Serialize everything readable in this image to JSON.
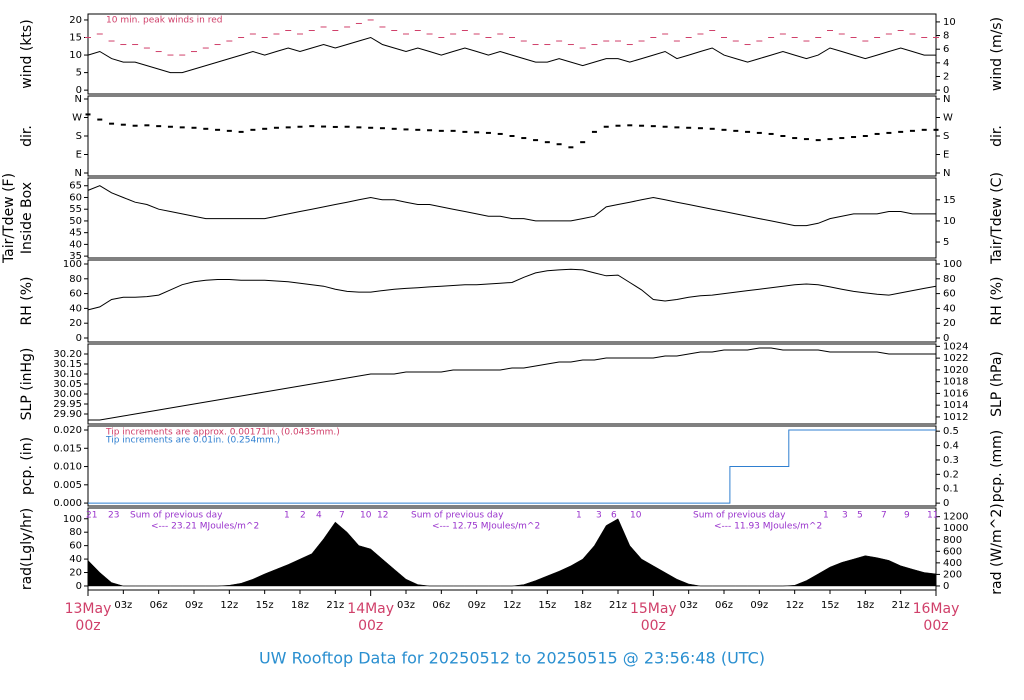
{
  "title": "UW Rooftop Data for 20250512  to  20250515 @ 23:56:48  (UTC)",
  "x": [
    0,
    1,
    2,
    3,
    4,
    5,
    6,
    7,
    8,
    9,
    10,
    11,
    12,
    13,
    14,
    15,
    16,
    17,
    18,
    19,
    20,
    21,
    22,
    23,
    24,
    25,
    26,
    27,
    28,
    29,
    30,
    31,
    32,
    33,
    34,
    35,
    36,
    37,
    38,
    39,
    40,
    41,
    42,
    43,
    44,
    45,
    46,
    47,
    48,
    49,
    50,
    51,
    52,
    53,
    54,
    55,
    56,
    57,
    58,
    59,
    60,
    61,
    62,
    63,
    64,
    65,
    66,
    67,
    68,
    69,
    70,
    71,
    72
  ],
  "xlim": [
    0,
    72
  ],
  "xticks": [
    {
      "value": 3,
      "label": "03z"
    },
    {
      "value": 6,
      "label": "06z"
    },
    {
      "value": 9,
      "label": "09z"
    },
    {
      "value": 12,
      "label": "12z"
    },
    {
      "value": 15,
      "label": "15z"
    },
    {
      "value": 18,
      "label": "18z"
    },
    {
      "value": 21,
      "label": "21z"
    },
    {
      "value": 27,
      "label": "03z"
    },
    {
      "value": 30,
      "label": "06z"
    },
    {
      "value": 33,
      "label": "09z"
    },
    {
      "value": 36,
      "label": "12z"
    },
    {
      "value": 39,
      "label": "15z"
    },
    {
      "value": 42,
      "label": "18z"
    },
    {
      "value": 45,
      "label": "21z"
    },
    {
      "value": 51,
      "label": "03z"
    },
    {
      "value": 54,
      "label": "06z"
    },
    {
      "value": 57,
      "label": "09z"
    },
    {
      "value": 60,
      "label": "12z"
    },
    {
      "value": 63,
      "label": "15z"
    },
    {
      "value": 66,
      "label": "18z"
    },
    {
      "value": 69,
      "label": "21z"
    }
  ],
  "day_ticks": [
    {
      "value": 0,
      "label": "13May",
      "sublabel": "00z"
    },
    {
      "value": 24,
      "label": "14May",
      "sublabel": "00z"
    },
    {
      "value": 48,
      "label": "15May",
      "sublabel": "00z"
    },
    {
      "value": 72,
      "label": "16May",
      "sublabel": "00z"
    }
  ],
  "chart_data": [
    {
      "type": "line",
      "ylabel": [
        "wind (kts)"
      ],
      "y2label": "wind (m/s)",
      "ylim": [
        -1.1,
        21.7
      ],
      "yticks": [
        0,
        5,
        10,
        15,
        20
      ],
      "y2lim": [
        -0.57,
        11.16
      ],
      "y2ticks": [
        0,
        2,
        4,
        6,
        8,
        10
      ],
      "annotations": [
        {
          "text": "10 min. peak winds in red",
          "color": "#d0406a"
        }
      ],
      "series": [
        {
          "mark": "line",
          "color": "#000000",
          "values": [
            10,
            11,
            9,
            8,
            8,
            7,
            6,
            5,
            5,
            6,
            7,
            8,
            9,
            10,
            11,
            10,
            11,
            12,
            11,
            12,
            13,
            12,
            13,
            14,
            15,
            13,
            12,
            11,
            12,
            11,
            10,
            11,
            12,
            11,
            10,
            11,
            10,
            9,
            8,
            8,
            9,
            8,
            7,
            8,
            9,
            9,
            8,
            9,
            10,
            11,
            9,
            10,
            11,
            12,
            10,
            9,
            8,
            9,
            10,
            11,
            10,
            9,
            10,
            12,
            11,
            10,
            9,
            10,
            11,
            12,
            11,
            10,
            10
          ]
        },
        {
          "mark": "dash",
          "color": "#d0406a",
          "values": [
            15,
            16,
            14,
            13,
            13,
            12,
            11,
            10,
            10,
            11,
            12,
            13,
            14,
            15,
            16,
            15,
            16,
            17,
            16,
            17,
            18,
            17,
            18,
            19,
            20,
            18,
            17,
            16,
            17,
            16,
            15,
            16,
            17,
            16,
            15,
            16,
            15,
            14,
            13,
            13,
            14,
            13,
            12,
            13,
            14,
            14,
            13,
            14,
            15,
            16,
            14,
            15,
            16,
            17,
            15,
            14,
            13,
            14,
            15,
            16,
            15,
            14,
            15,
            17,
            16,
            15,
            14,
            15,
            16,
            17,
            16,
            15,
            15
          ]
        }
      ]
    },
    {
      "type": "line",
      "ylabel": [
        "dir."
      ],
      "y2label": "dir.",
      "ylim": [
        -14.6,
        374.6
      ],
      "yticks": [
        {
          "value": 0,
          "label": "N"
        },
        {
          "value": 90,
          "label": "E"
        },
        {
          "value": 180,
          "label": "S"
        },
        {
          "value": 270,
          "label": "W"
        },
        {
          "value": 360,
          "label": "N"
        }
      ],
      "series": [
        {
          "mark": "points",
          "color": "#000000",
          "values": [
            285,
            260,
            240,
            235,
            230,
            232,
            228,
            225,
            222,
            220,
            215,
            210,
            205,
            200,
            210,
            215,
            220,
            222,
            225,
            228,
            226,
            224,
            225,
            222,
            220,
            218,
            215,
            212,
            210,
            208,
            205,
            205,
            200,
            198,
            195,
            190,
            180,
            170,
            160,
            150,
            140,
            125,
            150,
            200,
            225,
            230,
            232,
            230,
            228,
            225,
            222,
            220,
            218,
            215,
            210,
            205,
            200,
            195,
            190,
            180,
            170,
            165,
            160,
            165,
            170,
            175,
            180,
            190,
            195,
            200,
            205,
            210,
            210
          ]
        }
      ]
    },
    {
      "type": "line",
      "ylabel": [
        "Tair/Tdew (F)",
        "Inside Box"
      ],
      "y2label": "Tair/Tdew (C)",
      "ylim": [
        34.2,
        68.3
      ],
      "yticks": [
        35,
        40,
        45,
        50,
        55,
        60,
        65
      ],
      "y2lim": [
        1.22,
        20.17
      ],
      "y2ticks": [
        5,
        10,
        15
      ],
      "series": [
        {
          "mark": "line",
          "color": "#000000",
          "values": [
            63,
            65,
            62,
            60,
            58,
            57,
            55,
            54,
            53,
            52,
            51,
            51,
            51,
            51,
            51,
            51,
            52,
            53,
            54,
            55,
            56,
            57,
            58,
            59,
            60,
            59,
            59,
            58,
            57,
            57,
            56,
            55,
            54,
            53,
            52,
            52,
            51,
            51,
            50,
            50,
            50,
            50,
            51,
            52,
            56,
            57,
            58,
            59,
            60,
            59,
            58,
            57,
            56,
            55,
            54,
            53,
            52,
            51,
            50,
            49,
            48,
            48,
            49,
            51,
            52,
            53,
            53,
            53,
            54,
            54,
            53,
            53,
            53
          ]
        }
      ]
    },
    {
      "type": "line",
      "ylabel": [
        "RH (%)"
      ],
      "y2label": "RH (%)",
      "ylim": [
        -5.4,
        105.4
      ],
      "yticks": [
        0,
        20,
        40,
        60,
        80,
        100
      ],
      "y2lim": [
        -5.4,
        105.4
      ],
      "y2ticks": [
        0,
        20,
        40,
        60,
        80,
        100
      ],
      "series": [
        {
          "mark": "line",
          "color": "#000000",
          "values": [
            38,
            42,
            52,
            55,
            55,
            56,
            58,
            65,
            72,
            76,
            78,
            79,
            79,
            78,
            78,
            78,
            77,
            76,
            74,
            72,
            70,
            66,
            63,
            62,
            62,
            64,
            66,
            67,
            68,
            69,
            70,
            71,
            72,
            72,
            73,
            74,
            75,
            82,
            88,
            91,
            92,
            93,
            92,
            88,
            84,
            85,
            75,
            65,
            52,
            50,
            52,
            55,
            57,
            58,
            60,
            62,
            64,
            66,
            68,
            70,
            72,
            73,
            72,
            69,
            66,
            63,
            61,
            59,
            58,
            61,
            64,
            67,
            70
          ]
        }
      ]
    },
    {
      "type": "line",
      "ylabel": [
        "SLP (inHg)"
      ],
      "y2label": "SLP (hPa)",
      "ylim": [
        29.85,
        30.25
      ],
      "yticks": [
        {
          "value": 29.9,
          "label": "29.90"
        },
        {
          "value": 29.95,
          "label": "29.95"
        },
        {
          "value": 30,
          "label": "30.00"
        },
        {
          "value": 30.05,
          "label": "30.05"
        },
        {
          "value": 30.1,
          "label": "30.10"
        },
        {
          "value": 30.15,
          "label": "30.15"
        },
        {
          "value": 30.2,
          "label": "30.20"
        }
      ],
      "y2lim": [
        1010.8,
        1024.4
      ],
      "y2ticks": [
        1012,
        1014,
        1016,
        1018,
        1020,
        1022,
        1024
      ],
      "series": [
        {
          "mark": "line",
          "color": "#000000",
          "values": [
            29.87,
            29.87,
            29.88,
            29.89,
            29.9,
            29.91,
            29.92,
            29.93,
            29.94,
            29.95,
            29.96,
            29.97,
            29.98,
            29.99,
            30.0,
            30.01,
            30.02,
            30.03,
            30.04,
            30.05,
            30.06,
            30.07,
            30.08,
            30.09,
            30.1,
            30.1,
            30.1,
            30.11,
            30.11,
            30.11,
            30.11,
            30.12,
            30.12,
            30.12,
            30.12,
            30.12,
            30.13,
            30.13,
            30.14,
            30.15,
            30.16,
            30.16,
            30.17,
            30.17,
            30.18,
            30.18,
            30.18,
            30.18,
            30.18,
            30.19,
            30.19,
            30.2,
            30.21,
            30.21,
            30.22,
            30.22,
            30.22,
            30.23,
            30.23,
            30.22,
            30.22,
            30.22,
            30.22,
            30.21,
            30.21,
            30.21,
            30.21,
            30.21,
            30.2,
            30.2,
            30.2,
            30.2,
            30.2
          ]
        }
      ]
    },
    {
      "type": "line",
      "ylabel": [
        "pcp. (in)"
      ],
      "y2label": "pcp. (mm)",
      "ylim": [
        -0.0008,
        0.0211
      ],
      "yticks": [
        {
          "value": 0,
          "label": "0.000"
        },
        {
          "value": 0.005,
          "label": "0.005"
        },
        {
          "value": 0.01,
          "label": "0.010"
        },
        {
          "value": 0.015,
          "label": "0.015"
        },
        {
          "value": 0.02,
          "label": "0.020"
        }
      ],
      "y2lim": [
        -0.02,
        0.536
      ],
      "y2ticks": [
        0,
        0.1,
        0.2,
        0.3,
        0.4,
        0.5
      ],
      "annotations": [
        {
          "text": "Tip increments are approx. 0.00171in. (0.0435mm.)",
          "color": "#d0406a"
        },
        {
          "text": "Tip increments are 0.01in. (0.254mm.)",
          "color": "#2f7fd0"
        }
      ],
      "series": [
        {
          "mark": "step",
          "color": "#2f7fd0",
          "x": [
            0,
            54.5,
            54.5,
            59.5,
            59.5,
            72
          ],
          "values": [
            0,
            0,
            0.01,
            0.01,
            0.02,
            0.02
          ]
        }
      ]
    },
    {
      "type": "line",
      "ylabel": [
        "rad(Lgly/hr)"
      ],
      "y2label": "rad (W/m^2)",
      "ylim": [
        -6,
        116
      ],
      "yticks": [
        0,
        20,
        40,
        60,
        80,
        100
      ],
      "y2lim": [
        -70,
        1350
      ],
      "y2ticks": [
        0,
        200,
        400,
        600,
        800,
        1000,
        1200
      ],
      "notes": [
        {
          "text": "Sum of previous day",
          "total": "<--- 23.21 MJoules/m^2"
        },
        {
          "text": "Sum of previous day",
          "total": "<--- 12.75 MJoules/m^2"
        },
        {
          "text": "Sum of previous day",
          "total": "<--- 11.93 MJoules/m^2"
        }
      ],
      "hours": [
        [
          "21",
          "23"
        ],
        [
          "1",
          "2",
          "4",
          "7",
          "10",
          "12"
        ],
        [
          "1",
          "3",
          "6",
          "10"
        ],
        [
          "1",
          "3",
          "5",
          "7",
          "9",
          "11"
        ]
      ],
      "series": [
        {
          "mark": "area",
          "color": "#000000",
          "values": [
            38,
            20,
            5,
            0,
            0,
            0,
            0,
            0,
            0,
            0,
            0,
            0,
            1,
            4,
            10,
            18,
            25,
            32,
            40,
            48,
            70,
            95,
            80,
            60,
            55,
            40,
            25,
            10,
            2,
            0,
            0,
            0,
            0,
            0,
            0,
            0,
            0,
            2,
            8,
            15,
            22,
            30,
            40,
            60,
            90,
            100,
            60,
            40,
            30,
            20,
            10,
            3,
            0,
            0,
            0,
            0,
            0,
            0,
            0,
            0,
            1,
            8,
            18,
            28,
            35,
            40,
            45,
            42,
            38,
            30,
            25,
            20,
            18
          ]
        }
      ]
    }
  ]
}
